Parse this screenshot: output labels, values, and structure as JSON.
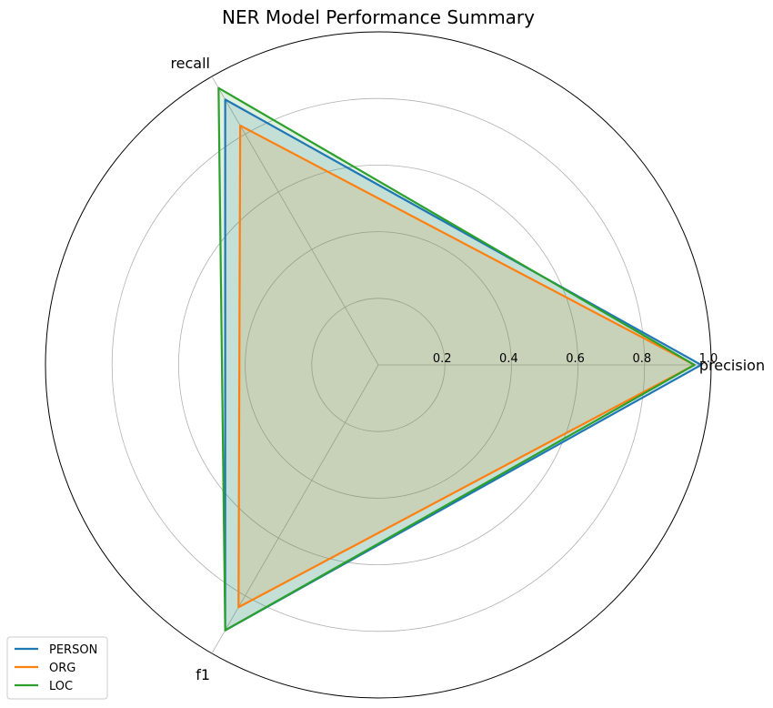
{
  "chart_data": {
    "type": "radar",
    "title": "NER Model Performance Summary",
    "axes": [
      "precision",
      "recall",
      "f1"
    ],
    "rlim": [
      0,
      1.0
    ],
    "rticks": [
      0.2,
      0.4,
      0.6,
      0.8,
      1.0
    ],
    "rtick_labels": [
      "0.2",
      "0.4",
      "0.6",
      "0.8",
      "1.0"
    ],
    "grid": true,
    "legend_position": "bottom-left",
    "series": [
      {
        "name": "PERSON",
        "color": "#1f77b4",
        "values": [
          0.97,
          0.92,
          0.92
        ]
      },
      {
        "name": "ORG",
        "color": "#ff7f0e",
        "values": [
          0.95,
          0.83,
          0.84
        ]
      },
      {
        "name": "LOC",
        "color": "#2ca02c",
        "values": [
          0.95,
          0.96,
          0.92
        ]
      }
    ]
  }
}
